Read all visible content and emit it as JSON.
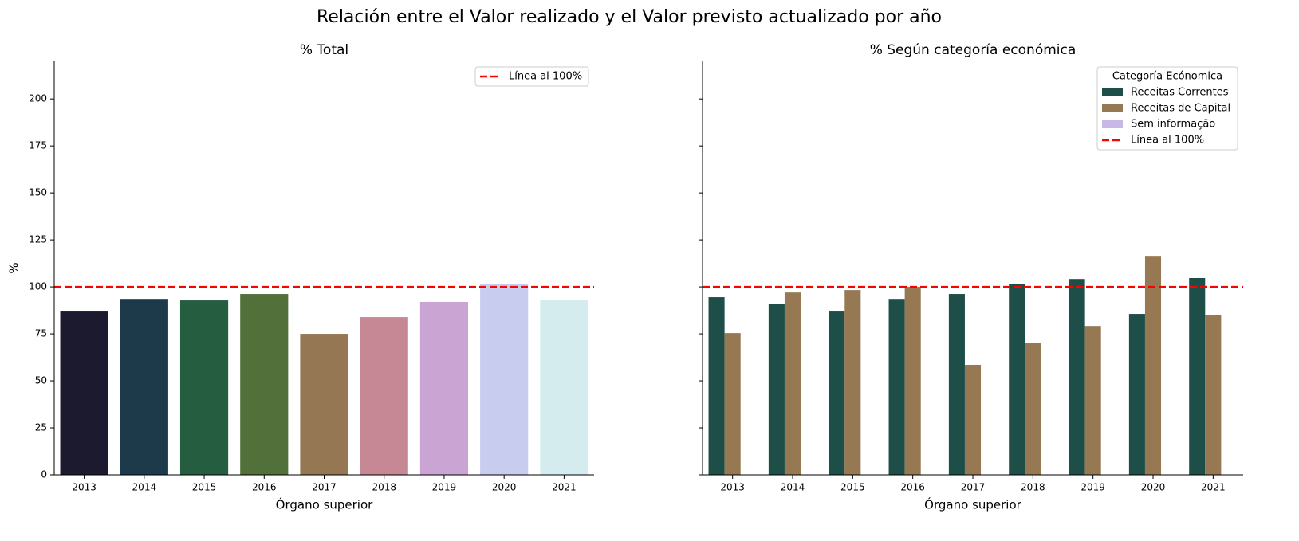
{
  "title": "Relación entre el Valor realizado y el Valor previsto actualizado por año",
  "chart_data": [
    {
      "type": "bar",
      "title": "% Total",
      "xlabel": "Órgano superior",
      "ylabel": "%",
      "categories": [
        "2013",
        "2014",
        "2015",
        "2016",
        "2017",
        "2018",
        "2019",
        "2020",
        "2021"
      ],
      "values": [
        87.3,
        93.6,
        92.8,
        96.2,
        75.0,
        83.9,
        92.0,
        101.7,
        92.8
      ],
      "colors": [
        "#1c1a2e",
        "#1d3a4a",
        "#255d40",
        "#52703a",
        "#957853",
        "#c68894",
        "#caa5d3",
        "#c8cdf0",
        "#d5ecee"
      ],
      "reference_line": {
        "value": 100,
        "label": "Línea al 100%",
        "color": "#ff0000"
      },
      "ylim": [
        0,
        220
      ],
      "yticks": [
        0,
        25,
        50,
        75,
        100,
        125,
        150,
        175,
        200
      ],
      "legend": "upper right"
    },
    {
      "type": "grouped_bar",
      "title": "% Según categoría económica",
      "xlabel": "Órgano superior",
      "sharey": true,
      "categories": [
        "2013",
        "2014",
        "2015",
        "2016",
        "2017",
        "2018",
        "2019",
        "2020",
        "2021"
      ],
      "legend_title": "Categoría Ecónomica",
      "series": [
        {
          "name": "Receitas Correntes",
          "color": "#1e4e48",
          "values": [
            94.5,
            91.1,
            87.3,
            93.6,
            96.2,
            101.7,
            104.2,
            85.6,
            104.7
          ]
        },
        {
          "name": "Receitas de Capital",
          "color": "#967853",
          "values": [
            75.4,
            97.0,
            98.3,
            100.0,
            58.5,
            70.3,
            79.2,
            116.5,
            85.2
          ]
        },
        {
          "name": "Sem informação",
          "color": "#c8b8e8",
          "values": [
            null,
            null,
            null,
            null,
            null,
            null,
            null,
            null,
            null
          ]
        }
      ],
      "reference_line": {
        "value": 100,
        "label": "Línea al 100%",
        "color": "#ff0000"
      },
      "ylim": [
        0,
        220
      ],
      "yticks": [
        0,
        25,
        50,
        75,
        100,
        125,
        150,
        175,
        200
      ],
      "legend": "upper right"
    }
  ]
}
